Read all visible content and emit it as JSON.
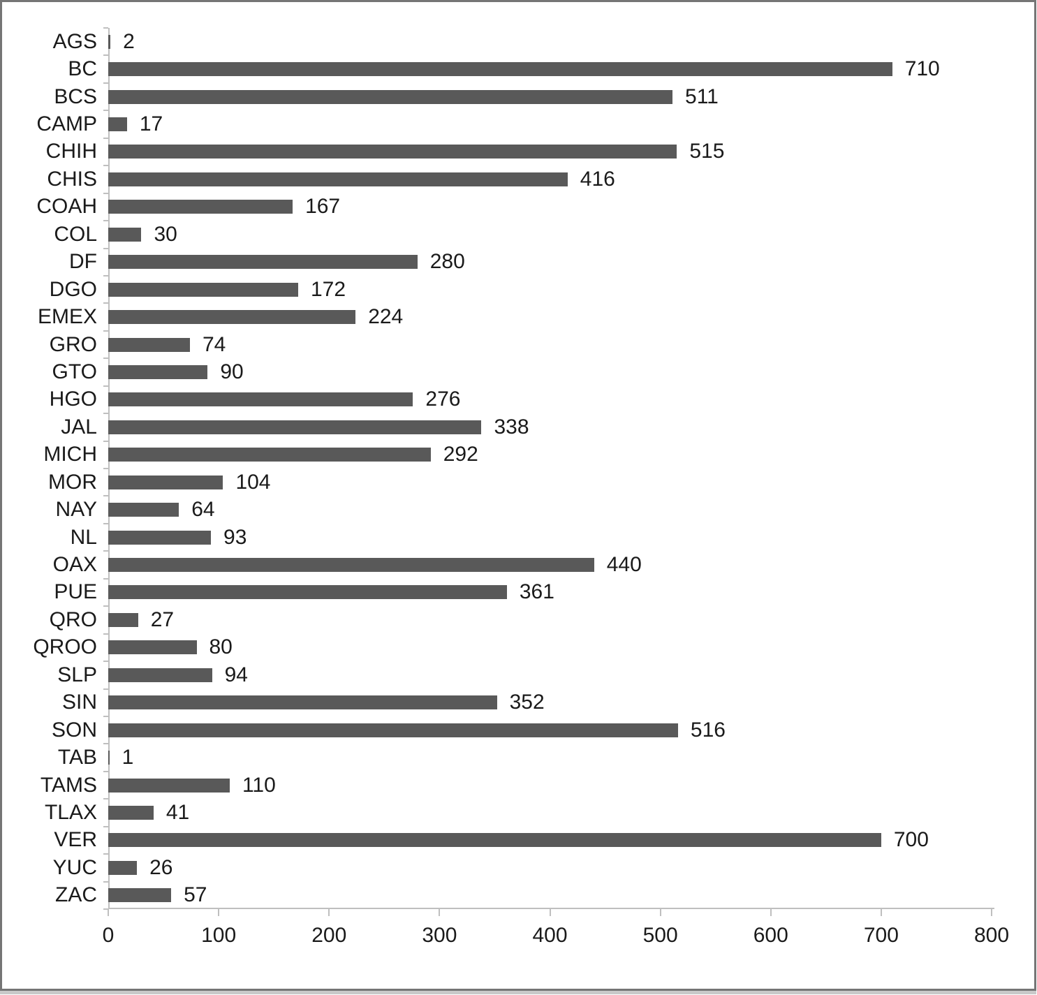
{
  "chart_data": {
    "type": "bar",
    "orientation": "horizontal",
    "title": "",
    "xlabel": "",
    "ylabel": "",
    "categories": [
      "AGS",
      "BC",
      "BCS",
      "CAMP",
      "CHIH",
      "CHIS",
      "COAH",
      "COL",
      "DF",
      "DGO",
      "EMEX",
      "GRO",
      "GTO",
      "HGO",
      "JAL",
      "MICH",
      "MOR",
      "NAY",
      "NL",
      "OAX",
      "PUE",
      "QRO",
      "QROO",
      "SLP",
      "SIN",
      "SON",
      "TAB",
      "TAMS",
      "TLAX",
      "VER",
      "YUC",
      "ZAC"
    ],
    "values": [
      2,
      710,
      511,
      17,
      515,
      416,
      167,
      30,
      280,
      172,
      224,
      74,
      90,
      276,
      338,
      292,
      104,
      64,
      93,
      440,
      361,
      27,
      80,
      94,
      352,
      516,
      1,
      110,
      41,
      700,
      26,
      57
    ],
    "value_labels": [
      "2",
      "710",
      "511",
      "17",
      "515",
      "416",
      "167",
      "30",
      "280",
      "172",
      "224",
      "74",
      "90",
      "276",
      "338",
      "292",
      "104",
      "64",
      "93",
      "440",
      "361",
      "27",
      "80",
      "94",
      "352",
      "516",
      "1",
      "110",
      "41",
      "700",
      "26",
      "57"
    ],
    "xlim": [
      0,
      800
    ],
    "x_ticks": [
      0,
      100,
      200,
      300,
      400,
      500,
      600,
      700,
      800
    ],
    "grid": false,
    "legend": false,
    "value_labels_shown": true,
    "colors": {
      "bar": "#595959",
      "axis": "#bfbfbf",
      "text": "#1a1a1a",
      "frame_border": "#757575",
      "background": "#ffffff"
    }
  }
}
